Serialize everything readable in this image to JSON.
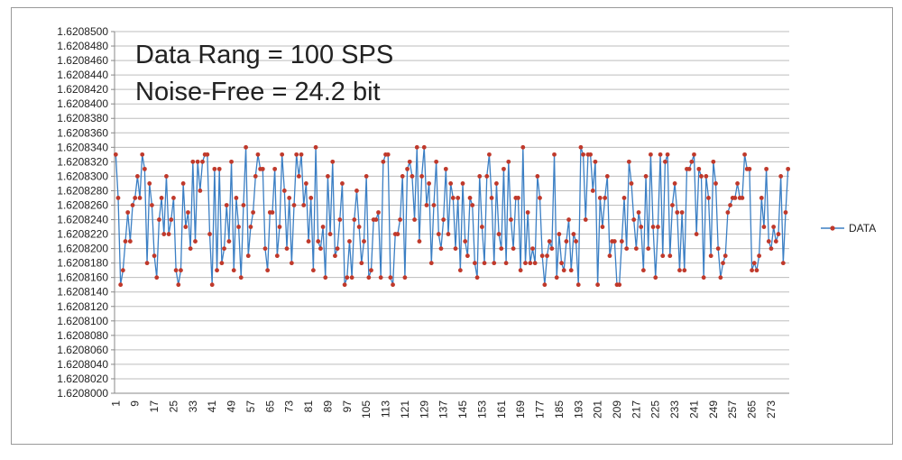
{
  "chart_data": {
    "type": "line",
    "annotations": [
      "Data Rang = 100 SPS",
      "Noise-Free = 24.2 bit"
    ],
    "annotation_color": "#e3321c",
    "legend": "right",
    "grid": true,
    "ylim": [
      1.6208,
      1.62085
    ],
    "yticks": [
      {
        "value": 1.6208,
        "label": "1.6208000"
      },
      {
        "value": 1.620802,
        "label": "1.6208020"
      },
      {
        "value": 1.620804,
        "label": "1.6208040"
      },
      {
        "value": 1.620806,
        "label": "1.6208060"
      },
      {
        "value": 1.620808,
        "label": "1.6208080"
      },
      {
        "value": 1.62081,
        "label": "1.6208100"
      },
      {
        "value": 1.620812,
        "label": "1.6208120"
      },
      {
        "value": 1.620814,
        "label": "1.6208140"
      },
      {
        "value": 1.620816,
        "label": "1.6208160"
      },
      {
        "value": 1.620818,
        "label": "1.6208180"
      },
      {
        "value": 1.62082,
        "label": "1.6208200"
      },
      {
        "value": 1.620822,
        "label": "1.6208220"
      },
      {
        "value": 1.620824,
        "label": "1.6208240"
      },
      {
        "value": 1.620826,
        "label": "1.6208260"
      },
      {
        "value": 1.620828,
        "label": "1.6208280"
      },
      {
        "value": 1.62083,
        "label": "1.6208300"
      },
      {
        "value": 1.620832,
        "label": "1.6208320"
      },
      {
        "value": 1.620834,
        "label": "1.6208340"
      },
      {
        "value": 1.620836,
        "label": "1.6208360"
      },
      {
        "value": 1.620838,
        "label": "1.6208380"
      },
      {
        "value": 1.62084,
        "label": "1.6208400"
      },
      {
        "value": 1.620842,
        "label": "1.6208420"
      },
      {
        "value": 1.620844,
        "label": "1.6208440"
      },
      {
        "value": 1.620846,
        "label": "1.6208460"
      },
      {
        "value": 1.620848,
        "label": "1.6208480"
      },
      {
        "value": 1.62085,
        "label": "1.6208500"
      }
    ],
    "categories": [
      "1",
      null,
      null,
      null,
      null,
      null,
      null,
      null,
      "9",
      null,
      null,
      null,
      null,
      null,
      null,
      null,
      "17",
      null,
      null,
      null,
      null,
      null,
      null,
      null,
      "25",
      null,
      null,
      null,
      null,
      null,
      null,
      null,
      "33",
      null,
      null,
      null,
      null,
      null,
      null,
      null,
      "41",
      null,
      null,
      null,
      null,
      null,
      null,
      null,
      "49",
      null,
      null,
      null,
      null,
      null,
      null,
      null,
      "57",
      null,
      null,
      null,
      null,
      null,
      null,
      null,
      "65",
      null,
      null,
      null,
      null,
      null,
      null,
      null,
      "73",
      null,
      null,
      null,
      null,
      null,
      null,
      null,
      "81",
      null,
      null,
      null,
      null,
      null,
      null,
      null,
      "89",
      null,
      null,
      null,
      null,
      null,
      null,
      null,
      "97",
      null,
      null,
      null,
      null,
      null,
      null,
      null,
      "105",
      null,
      null,
      null,
      null,
      null,
      null,
      null,
      "113",
      null,
      null,
      null,
      null,
      null,
      null,
      null,
      "121",
      null,
      null,
      null,
      null,
      null,
      null,
      null,
      "129",
      null,
      null,
      null,
      null,
      null,
      null,
      null,
      "137",
      null,
      null,
      null,
      null,
      null,
      null,
      null,
      "145",
      null,
      null,
      null,
      null,
      null,
      null,
      null,
      "153",
      null,
      null,
      null,
      null,
      null,
      null,
      null,
      "161",
      null,
      null,
      null,
      null,
      null,
      null,
      null,
      "169",
      null,
      null,
      null,
      null,
      null,
      null,
      null,
      "177",
      null,
      null,
      null,
      null,
      null,
      null,
      null,
      "185",
      null,
      null,
      null,
      null,
      null,
      null,
      null,
      "193",
      null,
      null,
      null,
      null,
      null,
      null,
      null,
      "201",
      null,
      null,
      null,
      null,
      null,
      null,
      null,
      "209",
      null,
      null,
      null,
      null,
      null,
      null,
      null,
      "217",
      null,
      null,
      null,
      null,
      null,
      null,
      null,
      "225",
      null,
      null,
      null,
      null,
      null,
      null,
      null,
      "233",
      null,
      null,
      null,
      null,
      null,
      null,
      null,
      "241",
      null,
      null,
      null,
      null,
      null,
      null,
      null,
      "249",
      null,
      null,
      null,
      null,
      null,
      null,
      null,
      "257",
      null,
      null,
      null,
      null,
      null,
      null,
      null,
      "265",
      null,
      null,
      null,
      null,
      null,
      null,
      null,
      "273",
      null,
      null,
      null,
      null,
      null,
      null,
      null
    ],
    "series": [
      {
        "name": "DATA",
        "color": "#3b7fc4",
        "marker_color": "#c0392b",
        "values": [
          1.620833,
          1.620827,
          1.620815,
          1.620817,
          1.620821,
          1.620825,
          1.620821,
          1.620826,
          1.620827,
          1.62083,
          1.620827,
          1.620833,
          1.620831,
          1.620818,
          1.620829,
          1.620826,
          1.620819,
          1.620816,
          1.620824,
          1.620827,
          1.620822,
          1.62083,
          1.620822,
          1.620824,
          1.620827,
          1.620817,
          1.620815,
          1.620817,
          1.620829,
          1.620823,
          1.620825,
          1.62082,
          1.620832,
          1.620821,
          1.620832,
          1.620828,
          1.620832,
          1.620833,
          1.620833,
          1.620822,
          1.620815,
          1.620831,
          1.620817,
          1.620831,
          1.620818,
          1.62082,
          1.620826,
          1.620821,
          1.620832,
          1.620817,
          1.620827,
          1.620823,
          1.620816,
          1.620826,
          1.620834,
          1.620819,
          1.620823,
          1.620825,
          1.62083,
          1.620833,
          1.620831,
          1.620831,
          1.62082,
          1.620817,
          1.620825,
          1.620825,
          1.620831,
          1.620819,
          1.620823,
          1.620833,
          1.620828,
          1.62082,
          1.620827,
          1.620818,
          1.620826,
          1.620833,
          1.62083,
          1.620833,
          1.620826,
          1.620829,
          1.620821,
          1.620827,
          1.620817,
          1.620834,
          1.620821,
          1.62082,
          1.620823,
          1.620816,
          1.62083,
          1.620822,
          1.620832,
          1.620819,
          1.62082,
          1.620824,
          1.620829,
          1.620815,
          1.620816,
          1.620821,
          1.620816,
          1.620824,
          1.620828,
          1.620823,
          1.620818,
          1.620821,
          1.62083,
          1.620816,
          1.620817,
          1.620824,
          1.620824,
          1.620825,
          1.620816,
          1.620832,
          1.620833,
          1.620833,
          1.620816,
          1.620815,
          1.620822,
          1.620822,
          1.620824,
          1.62083,
          1.620816,
          1.620831,
          1.620832,
          1.62083,
          1.620824,
          1.620834,
          1.620821,
          1.62083,
          1.620834,
          1.620826,
          1.620829,
          1.620818,
          1.620826,
          1.620832,
          1.620822,
          1.62082,
          1.620824,
          1.620831,
          1.620822,
          1.620829,
          1.620827,
          1.62082,
          1.620827,
          1.620817,
          1.620829,
          1.620821,
          1.620819,
          1.620827,
          1.620826,
          1.620818,
          1.620816,
          1.62083,
          1.620823,
          1.620818,
          1.62083,
          1.620833,
          1.620827,
          1.620818,
          1.620829,
          1.620822,
          1.62082,
          1.620831,
          1.620818,
          1.620832,
          1.620824,
          1.62082,
          1.620827,
          1.620827,
          1.620817,
          1.620834,
          1.620818,
          1.620825,
          1.620818,
          1.62082,
          1.620818,
          1.62083,
          1.620827,
          1.620819,
          1.620815,
          1.620819,
          1.620821,
          1.62082,
          1.620833,
          1.620816,
          1.620822,
          1.620818,
          1.620817,
          1.620821,
          1.620824,
          1.620817,
          1.620822,
          1.620821,
          1.620815,
          1.620834,
          1.620833,
          1.620824,
          1.620833,
          1.620833,
          1.620828,
          1.620832,
          1.620815,
          1.620827,
          1.620823,
          1.620827,
          1.62083,
          1.620819,
          1.620821,
          1.620821,
          1.620815,
          1.620815,
          1.620821,
          1.620827,
          1.62082,
          1.620832,
          1.620829,
          1.620824,
          1.62082,
          1.620825,
          1.620823,
          1.620817,
          1.62083,
          1.62082,
          1.620833,
          1.620823,
          1.620816,
          1.620823,
          1.620833,
          1.620819,
          1.620832,
          1.620833,
          1.620819,
          1.620826,
          1.620829,
          1.620825,
          1.620817,
          1.620825,
          1.620817,
          1.620831,
          1.620831,
          1.620832,
          1.620833,
          1.620822,
          1.620831,
          1.62083,
          1.620816,
          1.62083,
          1.620827,
          1.620819,
          1.620832,
          1.620829,
          1.62082,
          1.620816,
          1.620818,
          1.620819,
          1.620825,
          1.620826,
          1.620827,
          1.620827,
          1.620829,
          1.620827,
          1.620827,
          1.620833,
          1.620831,
          1.620831,
          1.620817,
          1.620818,
          1.620817,
          1.620819,
          1.620827,
          1.620823,
          1.620831,
          1.620821,
          1.62082,
          1.620823,
          1.620821,
          1.620822,
          1.62083,
          1.620818,
          1.620825,
          1.620831
        ]
      }
    ]
  }
}
